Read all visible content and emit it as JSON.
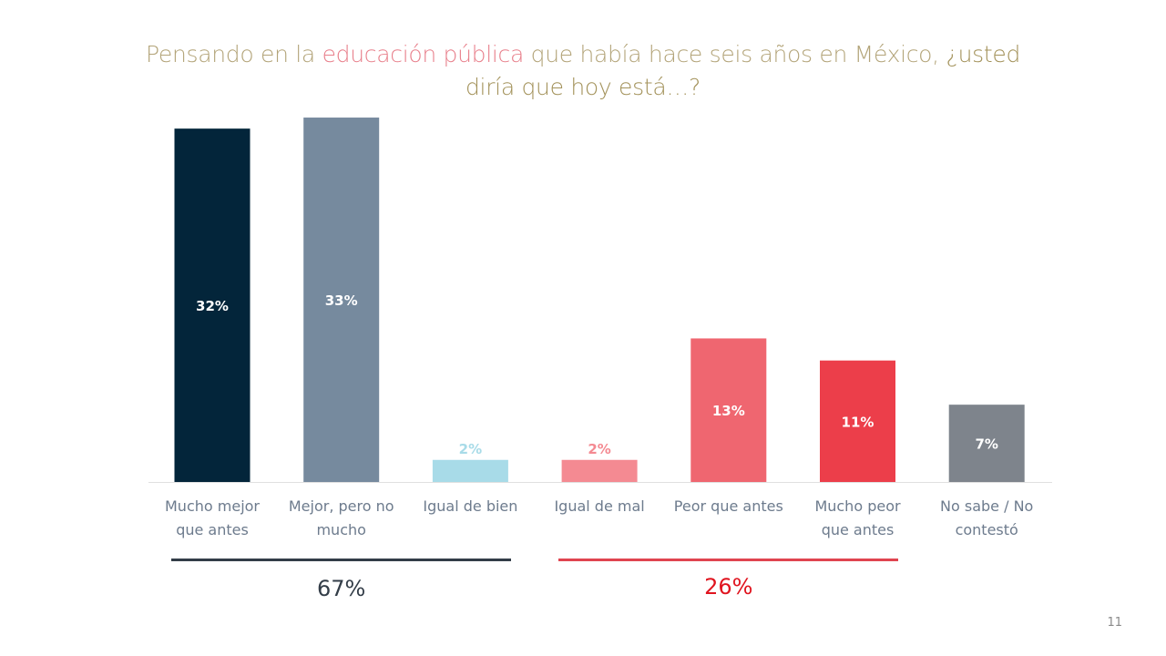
{
  "title": {
    "part1": "Pensando en la ",
    "highlight": "educación pública",
    "part2": " que había hace seis años en México, ",
    "bold1": "¿usted",
    "bold2": "diría que hoy está…?"
  },
  "chart_data": {
    "type": "bar",
    "title": "Pensando en la educación pública que había hace seis años en México, ¿usted diría que hoy está…?",
    "xlabel": "",
    "ylabel": "",
    "ylim": [
      0,
      35
    ],
    "grid": false,
    "legend": "none",
    "categories": [
      [
        "Mucho mejor",
        "que antes"
      ],
      [
        "Mejor, pero no",
        "mucho"
      ],
      [
        "Igual de bien"
      ],
      [
        "Igual de mal"
      ],
      [
        "Peor que antes"
      ],
      [
        "Mucho peor",
        "que antes"
      ],
      [
        "No sabe / No",
        "contestó"
      ]
    ],
    "values": [
      32,
      33,
      2,
      2,
      13,
      11,
      7
    ],
    "labels": [
      "32%",
      "33%",
      "2%",
      "2%",
      "13%",
      "11%",
      "7%"
    ],
    "colors": [
      "#03253a",
      "#768a9e",
      "#a8dbe8",
      "#f48a92",
      "#ef6670",
      "#ec3e4a",
      "#7e848c"
    ],
    "label_colors": [
      "#ffffff",
      "#ffffff",
      "#a8dbe8",
      "#f48a92",
      "#ffffff",
      "#ffffff",
      "#ffffff"
    ],
    "label_inside": [
      true,
      true,
      false,
      false,
      true,
      true,
      true
    ],
    "groups": [
      {
        "name": "better",
        "value": "67%",
        "color": "#333d48",
        "line_color": "#333d48",
        "from": 0,
        "to": 2
      },
      {
        "name": "worse",
        "value": "26%",
        "color": "#e0141f",
        "line_color": "#e04550",
        "from": 3,
        "to": 5
      }
    ]
  },
  "page_number": "11"
}
